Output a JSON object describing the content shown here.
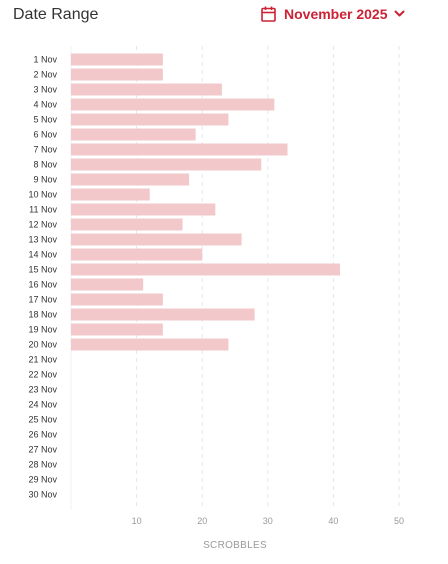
{
  "header": {
    "title": "Date Range",
    "picker_label": "November 2025",
    "accent_color": "#cc2235",
    "calendar_icon": "calendar-icon",
    "chevron_icon": "chevron-down-icon"
  },
  "chart_data": {
    "type": "bar",
    "orientation": "horizontal",
    "categories": [
      "1 Nov",
      "2 Nov",
      "3 Nov",
      "4 Nov",
      "5 Nov",
      "6 Nov",
      "7 Nov",
      "8 Nov",
      "9 Nov",
      "10 Nov",
      "11 Nov",
      "12 Nov",
      "13 Nov",
      "14 Nov",
      "15 Nov",
      "16 Nov",
      "17 Nov",
      "18 Nov",
      "19 Nov",
      "20 Nov",
      "21 Nov",
      "22 Nov",
      "23 Nov",
      "24 Nov",
      "25 Nov",
      "26 Nov",
      "27 Nov",
      "28 Nov",
      "29 Nov",
      "30 Nov"
    ],
    "values": [
      14,
      14,
      23,
      31,
      24,
      19,
      33,
      29,
      18,
      12,
      22,
      17,
      26,
      20,
      41,
      11,
      14,
      28,
      14,
      24,
      0,
      0,
      0,
      0,
      0,
      0,
      0,
      0,
      0,
      0
    ],
    "xlabel": "SCROBBLES",
    "xlim": [
      0,
      50
    ],
    "xticks": [
      10,
      20,
      30,
      40,
      50
    ],
    "grid": "vertical-dashed",
    "bar_color": "#f2c8cb"
  }
}
